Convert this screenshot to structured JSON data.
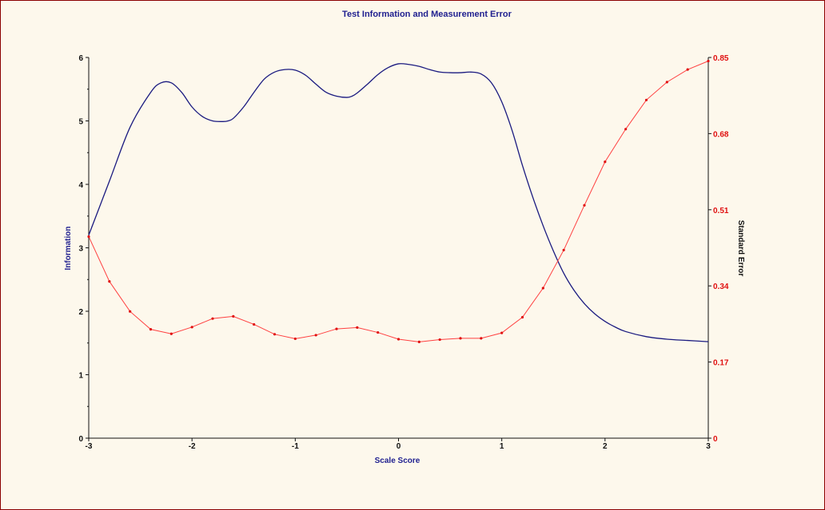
{
  "chart_data": {
    "type": "line",
    "title": "Test Information and Measurement Error",
    "xlabel": "Scale Score",
    "ylabel": "Information",
    "y2label": "Standard Error",
    "xlim": [
      -3,
      3
    ],
    "ylim": [
      0,
      6
    ],
    "y2lim": [
      0,
      0.85
    ],
    "x_ticks": [
      "-3",
      "-2",
      "-1",
      "0",
      "1",
      "2",
      "3"
    ],
    "y_ticks": [
      "0",
      "1",
      "2",
      "3",
      "4",
      "5",
      "6"
    ],
    "y2_ticks": [
      "0",
      "0.17",
      "0.34",
      "0.51",
      "0.68",
      "0.85"
    ],
    "grid": false,
    "series": [
      {
        "axis": "left",
        "color": "#1a1a80",
        "markers": false,
        "x": [
          -3.0,
          -2.8,
          -2.6,
          -2.4,
          -2.3,
          -2.2,
          -2.1,
          -2.0,
          -1.9,
          -1.8,
          -1.7,
          -1.65,
          -1.6,
          -1.5,
          -1.4,
          -1.3,
          -1.2,
          -1.1,
          -1.0,
          -0.9,
          -0.8,
          -0.7,
          -0.6,
          -0.5,
          -0.45,
          -0.4,
          -0.3,
          -0.2,
          -0.1,
          0.0,
          0.1,
          0.2,
          0.3,
          0.4,
          0.5,
          0.6,
          0.7,
          0.8,
          0.9,
          1.0,
          1.1,
          1.2,
          1.3,
          1.4,
          1.5,
          1.6,
          1.7,
          1.8,
          1.9,
          2.0,
          2.1,
          2.2,
          2.4,
          2.6,
          2.8,
          3.0
        ],
        "y": [
          3.2,
          4.05,
          4.9,
          5.45,
          5.6,
          5.6,
          5.45,
          5.22,
          5.07,
          5.0,
          4.99,
          5.0,
          5.04,
          5.22,
          5.45,
          5.66,
          5.77,
          5.81,
          5.8,
          5.72,
          5.58,
          5.45,
          5.39,
          5.37,
          5.39,
          5.44,
          5.58,
          5.73,
          5.84,
          5.9,
          5.89,
          5.86,
          5.81,
          5.77,
          5.76,
          5.76,
          5.77,
          5.74,
          5.6,
          5.3,
          4.85,
          4.3,
          3.8,
          3.35,
          2.95,
          2.6,
          2.33,
          2.12,
          1.96,
          1.84,
          1.75,
          1.68,
          1.6,
          1.56,
          1.54,
          1.52
        ]
      },
      {
        "axis": "right",
        "color": "#ff4040",
        "markers": true,
        "x": [
          -3.0,
          -2.8,
          -2.6,
          -2.4,
          -2.2,
          -2.0,
          -1.8,
          -1.6,
          -1.4,
          -1.2,
          -1.0,
          -0.8,
          -0.6,
          -0.4,
          -0.2,
          0.0,
          0.2,
          0.4,
          0.6,
          0.8,
          1.0,
          1.2,
          1.4,
          1.6,
          1.8,
          2.0,
          2.2,
          2.4,
          2.6,
          2.8,
          3.0
        ],
        "y": [
          0.45,
          0.35,
          0.283,
          0.243,
          0.233,
          0.248,
          0.267,
          0.272,
          0.254,
          0.232,
          0.222,
          0.23,
          0.244,
          0.247,
          0.236,
          0.221,
          0.215,
          0.22,
          0.223,
          0.223,
          0.235,
          0.27,
          0.335,
          0.42,
          0.52,
          0.617,
          0.69,
          0.755,
          0.795,
          0.823,
          0.842
        ]
      }
    ]
  }
}
